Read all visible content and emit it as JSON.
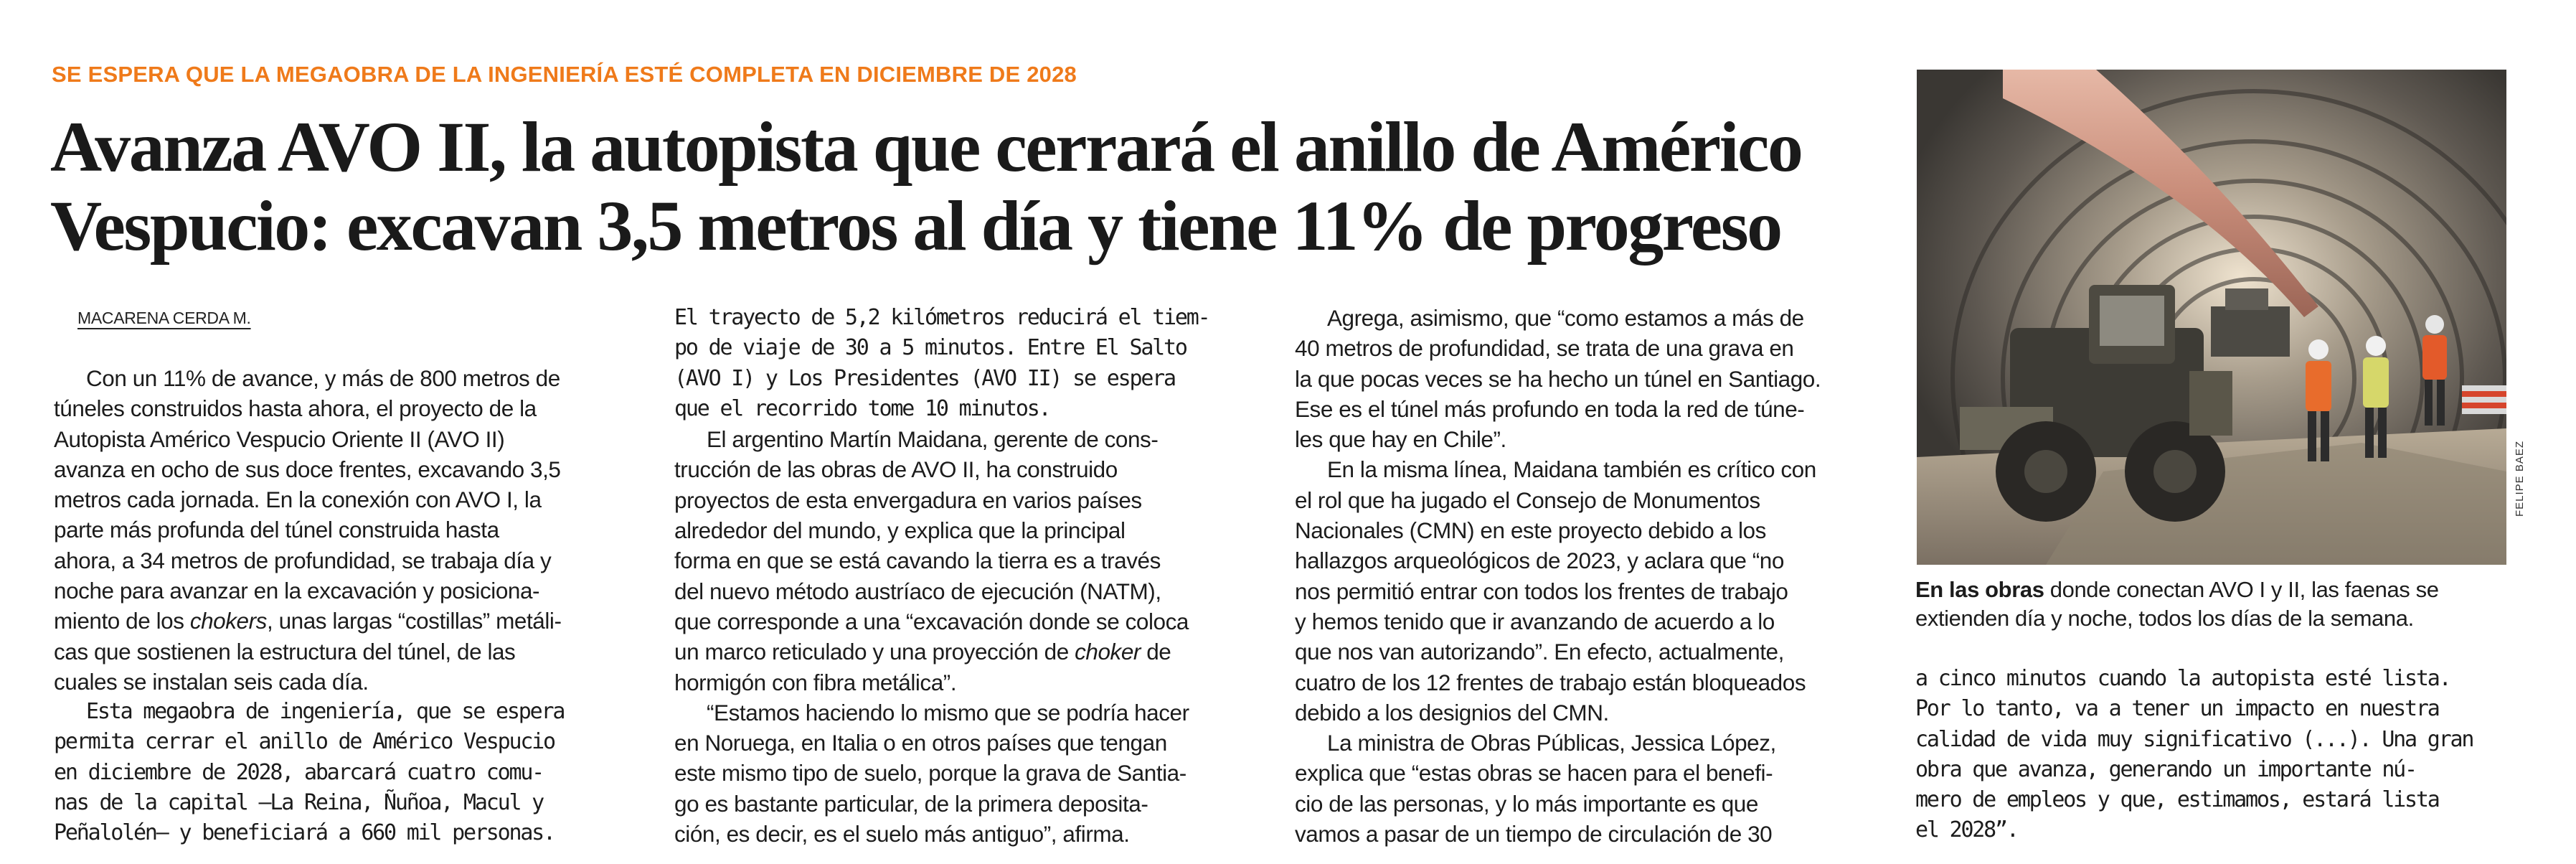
{
  "kicker": "SE ESPERA QUE LA MEGAOBRA DE LA INGENIERÍA ESTÉ COMPLETA EN DICIEMBRE DE 2028",
  "headline": {
    "line1": "Avanza AVO II, la autopista que cerrará el anillo de Américo",
    "line2": "Vespucio: excavan 3,5 metros al día y tiene 11% de progreso"
  },
  "byline": "MACARENA CERDA M.",
  "photo_credit": "FELIPE BAEZ",
  "caption": {
    "lead": "En las obras",
    "line1_rest": " donde conectan AVO I y II, las faenas se",
    "line2": "extienden día y noche, todos los días de la semana."
  },
  "col1a": [
    "Con un 11% de avance, y más de 800 metros de",
    "túneles construidos hasta ahora, el proyecto de la",
    "Autopista Américo Vespucio Oriente II (AVO II)",
    "avanza en ocho de sus doce frentes, excavando 3,5",
    "metros cada jornada. En la conexión con AVO I, la",
    "parte más profunda del túnel construida hasta",
    "ahora, a 34 metros de profundidad, se trabaja día y",
    "noche para avanzar en la excavación y posiciona-",
    "miento de los ",
    "chokers",
    ", unas largas “costillas” metáli-",
    "cas que sostienen la estructura del túnel, de las",
    "cuales se instalan seis cada día."
  ],
  "col1b": [
    "Esta megaobra de ingeniería, que se espera",
    "permita cerrar el anillo de Américo Vespucio",
    "en diciembre de 2028, abarcará cuatro comu-",
    "nas de la capital —La Reina, Ñuñoa, Macul y",
    "Peñalolén— y beneficiará a 660 mil personas."
  ],
  "col2": [
    "El trayecto de 5,2 kilómetros reducirá el tiem-",
    "po de viaje de 30 a 5 minutos. Entre El Salto",
    "(AVO I) y Los Presidentes (AVO II) se espera",
    "que el recorrido tome 10 minutos.",
    "El argentino Martín Maidana, gerente de cons-",
    "trucción de las obras de AVO II, ha construido",
    "proyectos de esta envergadura en varios países",
    "alrededor del mundo, y explica que la principal",
    "forma en que se está cavando la tierra es a través",
    "del nuevo método austríaco de ejecución (NATM),",
    "que corresponde a una “excavación donde se coloca",
    "un marco reticulado y una proyección de ",
    "choker",
    " de",
    "hormigón con fibra metálica”.",
    "“Estamos haciendo lo mismo que se podría hacer",
    "en Noruega, en Italia o en otros países que tengan",
    "este mismo tipo de suelo, porque la grava de Santia-",
    "go es bastante particular, de la primera deposita-",
    "ción, es decir, es el suelo más antiguo”, afirma."
  ],
  "col3": [
    "Agrega, asimismo, que “como estamos a más de",
    "40 metros de profundidad, se trata de una grava en",
    "la que pocas veces se ha hecho un túnel en Santiago.",
    "Ese es el túnel más profundo en toda la red de túne-",
    "les que hay en Chile”.",
    "En la misma línea, Maidana también es crítico con",
    "el rol que ha jugado el Consejo de Monumentos",
    "Nacionales (CMN) en este proyecto debido a los",
    "hallazgos arqueológicos de 2023, y aclara que “no",
    "nos permitió entrar con todos los frentes de trabajo",
    "y hemos tenido que ir avanzando de acuerdo a lo",
    "que nos van autorizando”. En efecto, actualmente,",
    "cuatro de los 12 frentes de trabajo están bloqueados",
    "debido a los designios del CMN.",
    "La ministra de Obras Públicas, Jessica López,",
    "explica que “estas obras se hacen para el benefi-",
    "cio de las personas, y lo más importante es que",
    "vamos a pasar de un tiempo de circulación de 30"
  ],
  "col4": [
    "a cinco minutos cuando la autopista esté lista.",
    "Por lo tanto, va a tener un impacto en nuestra",
    "calidad de vida muy significativo (...). Una gran",
    "obra que avanza, generando un importante nú-",
    "mero de empleos y que, estimamos, estará lista",
    "el 2028”."
  ]
}
